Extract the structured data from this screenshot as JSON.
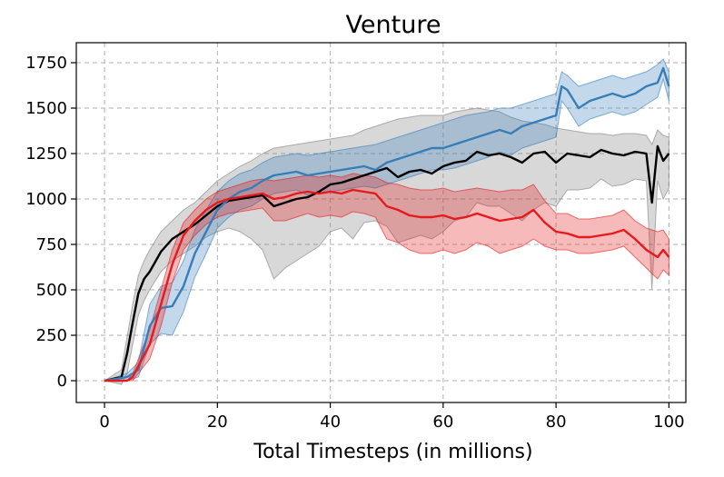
{
  "chart_data": {
    "type": "line",
    "title": "Venture",
    "xlabel": "Total Timesteps (in millions)",
    "ylabel": "",
    "xlim": [
      -5,
      103
    ],
    "ylim": [
      -120,
      1860
    ],
    "xticks": [
      0,
      20,
      40,
      60,
      80,
      100
    ],
    "yticks": [
      0,
      250,
      500,
      750,
      1000,
      1250,
      1500,
      1750
    ],
    "grid": true,
    "legend": "none",
    "series": [
      {
        "color": "#000000",
        "band_color": "#7f7f7f",
        "x": [
          0,
          3,
          4,
          5,
          6,
          7,
          8,
          10,
          12,
          14,
          16,
          18,
          20,
          22,
          24,
          26,
          28,
          30,
          32,
          34,
          36,
          38,
          40,
          42,
          44,
          46,
          48,
          50,
          52,
          54,
          56,
          58,
          60,
          62,
          64,
          66,
          68,
          70,
          72,
          74,
          76,
          78,
          80,
          82,
          84,
          86,
          88,
          90,
          92,
          94,
          96,
          97,
          98,
          99,
          100
        ],
        "y": [
          0,
          20,
          150,
          320,
          480,
          560,
          600,
          710,
          780,
          820,
          860,
          910,
          960,
          990,
          1000,
          1010,
          1020,
          960,
          980,
          1000,
          1010,
          1040,
          1080,
          1090,
          1110,
          1130,
          1150,
          1170,
          1120,
          1150,
          1160,
          1140,
          1180,
          1200,
          1210,
          1260,
          1240,
          1250,
          1230,
          1200,
          1250,
          1260,
          1200,
          1250,
          1240,
          1230,
          1270,
          1250,
          1240,
          1260,
          1250,
          980,
          1290,
          1210,
          1250
        ],
        "upper": [
          0,
          60,
          240,
          420,
          580,
          660,
          720,
          820,
          880,
          940,
          980,
          1040,
          1100,
          1140,
          1180,
          1210,
          1250,
          1280,
          1290,
          1300,
          1310,
          1320,
          1330,
          1340,
          1350,
          1380,
          1400,
          1420,
          1440,
          1450,
          1460,
          1460,
          1460,
          1480,
          1490,
          1500,
          1490,
          1480,
          1450,
          1430,
          1420,
          1410,
          1390,
          1380,
          1370,
          1360,
          1360,
          1350,
          1360,
          1360,
          1350,
          1300,
          1380,
          1350,
          1340
        ],
        "lower": [
          0,
          -20,
          40,
          200,
          360,
          440,
          500,
          600,
          660,
          700,
          740,
          790,
          820,
          840,
          820,
          780,
          720,
          560,
          620,
          660,
          700,
          740,
          820,
          840,
          780,
          870,
          880,
          850,
          760,
          780,
          800,
          780,
          820,
          880,
          900,
          980,
          960,
          960,
          920,
          880,
          940,
          980,
          960,
          1050,
          1050,
          1060,
          1110,
          1070,
          1080,
          1110,
          1100,
          500,
          1100,
          1000,
          1060
        ]
      },
      {
        "color": "#377eb8",
        "band_color": "#377eb8",
        "x": [
          0,
          4,
          6,
          8,
          10,
          12,
          14,
          16,
          18,
          20,
          22,
          24,
          26,
          28,
          30,
          32,
          34,
          36,
          38,
          40,
          42,
          44,
          46,
          48,
          50,
          52,
          54,
          56,
          58,
          60,
          62,
          64,
          66,
          68,
          70,
          72,
          74,
          76,
          78,
          80,
          81,
          82,
          84,
          86,
          88,
          90,
          92,
          94,
          96,
          98,
          99,
          100
        ],
        "y": [
          0,
          20,
          60,
          300,
          400,
          410,
          520,
          700,
          820,
          940,
          1000,
          1040,
          1060,
          1100,
          1130,
          1140,
          1150,
          1130,
          1140,
          1150,
          1160,
          1170,
          1180,
          1160,
          1200,
          1220,
          1240,
          1260,
          1280,
          1280,
          1300,
          1320,
          1340,
          1360,
          1380,
          1360,
          1400,
          1420,
          1440,
          1460,
          1620,
          1600,
          1500,
          1540,
          1560,
          1580,
          1560,
          1580,
          1620,
          1640,
          1720,
          1620
        ],
        "upper": [
          0,
          40,
          100,
          420,
          520,
          540,
          660,
          830,
          940,
          1040,
          1100,
          1140,
          1160,
          1200,
          1230,
          1240,
          1250,
          1240,
          1250,
          1260,
          1270,
          1280,
          1290,
          1300,
          1320,
          1340,
          1360,
          1380,
          1400,
          1420,
          1440,
          1460,
          1470,
          1480,
          1500,
          1500,
          1520,
          1540,
          1560,
          1580,
          1700,
          1680,
          1620,
          1640,
          1660,
          1680,
          1660,
          1680,
          1700,
          1740,
          1770,
          1700
        ],
        "lower": [
          0,
          0,
          20,
          200,
          260,
          250,
          380,
          570,
          700,
          840,
          900,
          940,
          960,
          1000,
          1030,
          1040,
          1050,
          1020,
          1030,
          1040,
          1050,
          1060,
          1070,
          1060,
          1080,
          1100,
          1120,
          1140,
          1160,
          1160,
          1170,
          1190,
          1210,
          1230,
          1260,
          1240,
          1280,
          1300,
          1320,
          1340,
          1540,
          1500,
          1400,
          1440,
          1460,
          1480,
          1460,
          1480,
          1520,
          1560,
          1660,
          1540
        ]
      },
      {
        "color": "#e41a1c",
        "band_color": "#e41a1c",
        "x": [
          0,
          4,
          5,
          6,
          8,
          10,
          12,
          14,
          16,
          18,
          20,
          22,
          24,
          26,
          28,
          30,
          32,
          34,
          36,
          38,
          40,
          42,
          44,
          46,
          48,
          50,
          52,
          54,
          56,
          58,
          60,
          62,
          64,
          66,
          68,
          70,
          72,
          74,
          76,
          78,
          80,
          82,
          84,
          86,
          88,
          90,
          92,
          94,
          96,
          98,
          99,
          100
        ],
        "y": [
          0,
          0,
          20,
          80,
          200,
          420,
          640,
          800,
          880,
          940,
          980,
          1000,
          1010,
          1020,
          1030,
          1000,
          1010,
          1030,
          1040,
          1030,
          1040,
          1030,
          1050,
          1040,
          1030,
          960,
          940,
          910,
          900,
          900,
          910,
          890,
          900,
          920,
          900,
          880,
          890,
          900,
          940,
          870,
          820,
          810,
          790,
          790,
          800,
          810,
          830,
          780,
          720,
          680,
          720,
          680
        ],
        "upper": [
          0,
          0,
          40,
          120,
          280,
          500,
          720,
          870,
          940,
          1000,
          1040,
          1060,
          1080,
          1100,
          1110,
          1100,
          1110,
          1120,
          1130,
          1120,
          1130,
          1120,
          1140,
          1130,
          1120,
          1090,
          1080,
          1060,
          1050,
          1050,
          1060,
          1040,
          1050,
          1060,
          1050,
          1040,
          1050,
          1050,
          1080,
          990,
          920,
          920,
          890,
          890,
          900,
          910,
          940,
          880,
          840,
          820,
          830,
          780
        ],
        "lower": [
          0,
          0,
          0,
          40,
          120,
          300,
          540,
          720,
          800,
          860,
          900,
          920,
          930,
          940,
          950,
          880,
          880,
          900,
          920,
          900,
          910,
          900,
          930,
          920,
          900,
          780,
          760,
          720,
          700,
          700,
          720,
          700,
          720,
          760,
          740,
          700,
          720,
          740,
          780,
          740,
          720,
          720,
          700,
          700,
          710,
          720,
          740,
          680,
          620,
          560,
          610,
          580
        ]
      }
    ]
  }
}
